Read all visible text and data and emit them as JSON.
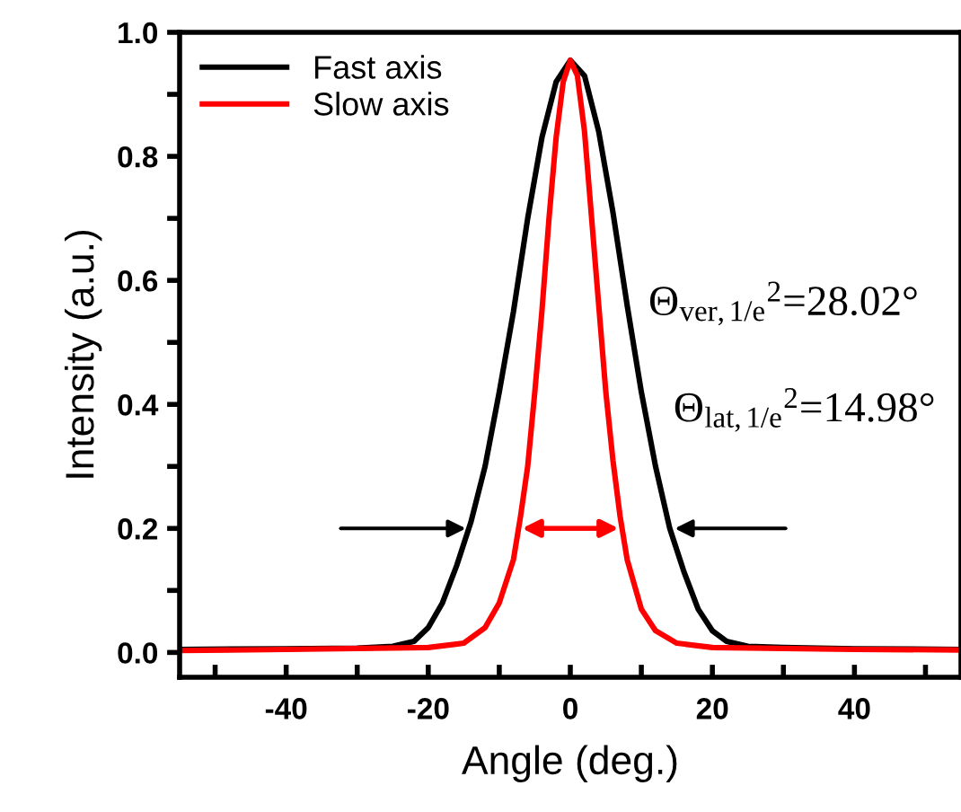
{
  "chart_data": {
    "type": "line",
    "xlabel": "Angle (deg.)",
    "ylabel": "Intensity (a.u.)",
    "xlim": [
      -55,
      55
    ],
    "ylim": [
      -0.04,
      1.0
    ],
    "xticks": [
      {
        "value": -50,
        "label": null
      },
      -40,
      {
        "value": -30,
        "label": null
      },
      -20,
      {
        "value": -10,
        "label": null
      },
      0,
      {
        "value": 10,
        "label": null
      },
      20,
      {
        "value": 30,
        "label": null
      },
      40,
      {
        "value": 50,
        "label": null
      }
    ],
    "yticks": [
      {
        "value": 0,
        "label": "0.0"
      },
      {
        "value": 0.1,
        "label": null
      },
      0.2,
      {
        "value": 0.3,
        "label": null
      },
      0.4,
      {
        "value": 0.5,
        "label": null
      },
      0.6,
      {
        "value": 0.7,
        "label": null
      },
      0.8,
      {
        "value": 0.9,
        "label": null
      },
      {
        "value": 1,
        "label": "1.0"
      }
    ],
    "grid": false,
    "legend": "top left",
    "marker": "none",
    "line_style": "solid",
    "series": [
      {
        "name": "Fast axis",
        "color": "#000000",
        "x": [
          -55,
          -40,
          -30,
          -25,
          -22,
          -20,
          -18,
          -16,
          -14,
          -12,
          -10,
          -8,
          -6,
          -4,
          -2,
          0,
          2,
          4,
          6,
          8,
          10,
          12,
          14,
          16,
          18,
          20,
          22,
          25,
          30,
          40,
          55
        ],
        "values": [
          0.005,
          0.006,
          0.007,
          0.01,
          0.018,
          0.04,
          0.08,
          0.14,
          0.21,
          0.3,
          0.42,
          0.55,
          0.7,
          0.83,
          0.92,
          0.955,
          0.93,
          0.84,
          0.71,
          0.56,
          0.42,
          0.3,
          0.2,
          0.13,
          0.07,
          0.035,
          0.018,
          0.01,
          0.008,
          0.006,
          0.005
        ]
      },
      {
        "name": "Slow axis",
        "color": "#ff0000",
        "x": [
          -55,
          -40,
          -20,
          -15,
          -12,
          -10,
          -8,
          -7,
          -6,
          -5,
          -4,
          -3,
          -2,
          -1,
          0,
          1,
          2,
          3,
          4,
          5,
          6,
          7,
          8,
          10,
          12,
          15,
          20,
          40,
          55
        ],
        "values": [
          0.003,
          0.005,
          0.008,
          0.015,
          0.04,
          0.08,
          0.15,
          0.22,
          0.3,
          0.42,
          0.55,
          0.7,
          0.83,
          0.92,
          0.955,
          0.93,
          0.84,
          0.7,
          0.56,
          0.42,
          0.31,
          0.22,
          0.15,
          0.07,
          0.035,
          0.015,
          0.008,
          0.005,
          0.004
        ]
      }
    ],
    "annotations": [
      "Θ$_{ver,1/e}$$^{2}$=28.02°",
      "Θ$_{lat,1/e}$$^{2}$=14.98°"
    ]
  }
}
